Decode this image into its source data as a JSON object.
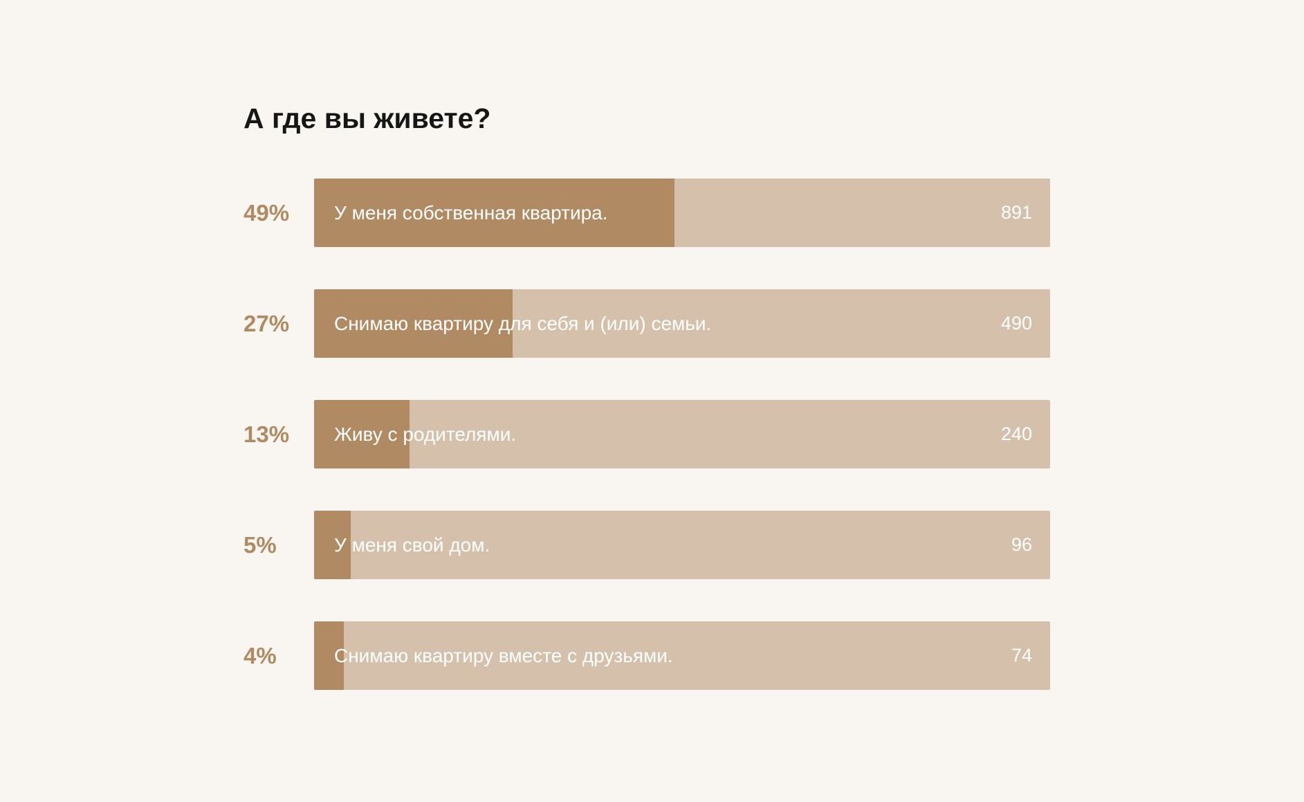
{
  "chart_data": {
    "type": "bar",
    "title": "А где вы живете?",
    "categories": [
      "У меня собственная квартира.",
      "Снимаю квартиру для себя и (или) семьи.",
      "Живу с родителями.",
      "У меня свой дом.",
      "Снимаю квартиру вместе с друзьями."
    ],
    "percent_labels": [
      "49%",
      "27%",
      "13%",
      "5%",
      "4%"
    ],
    "count_labels": [
      "891",
      "490",
      "240",
      "96",
      "74"
    ],
    "percents": [
      49,
      27,
      13,
      5,
      4
    ],
    "counts": [
      891,
      490,
      240,
      96,
      74
    ],
    "colors": {
      "fill": "#b08a63",
      "track": "#d5c1ab",
      "percent_text": "#b08a62",
      "background": "#f9f6f1"
    }
  }
}
